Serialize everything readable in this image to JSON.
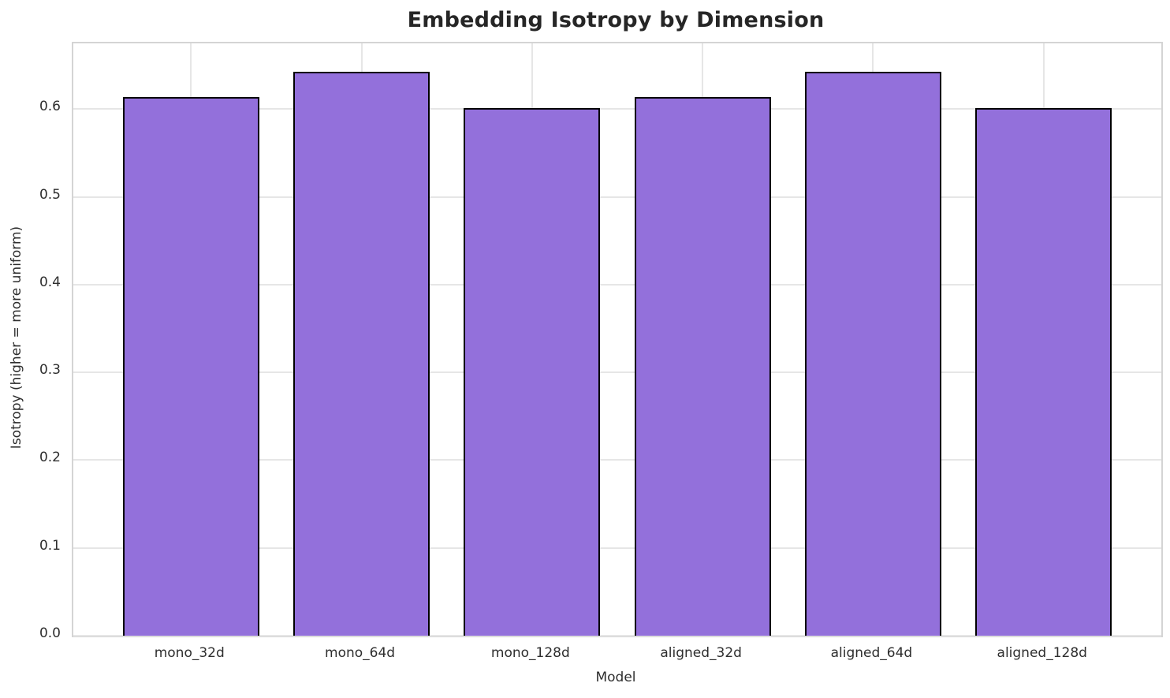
{
  "chart_data": {
    "type": "bar",
    "title": "Embedding Isotropy by Dimension",
    "xlabel": "Model",
    "ylabel": "Isotropy (higher = more uniform)",
    "categories": [
      "mono_32d",
      "mono_64d",
      "mono_128d",
      "aligned_32d",
      "aligned_64d",
      "aligned_128d"
    ],
    "values": [
      0.614,
      0.643,
      0.601,
      0.614,
      0.643,
      0.601
    ],
    "yticks": [
      0.0,
      0.1,
      0.2,
      0.3,
      0.4,
      0.5,
      0.6
    ],
    "ytick_labels": [
      "0.0",
      "0.1",
      "0.2",
      "0.3",
      "0.4",
      "0.5",
      "0.6"
    ],
    "ylim": [
      0,
      0.675
    ],
    "xlim": [
      -0.69,
      5.69
    ],
    "bar_rel_width": 0.8,
    "grid": true,
    "legend": false,
    "colors": {
      "bar_fill": "#9370DB",
      "bar_edge": "#000000",
      "grid": "#e6e6e6",
      "spine": "#d4d4d4",
      "text": "#2e2e2e",
      "title_text": "#262626",
      "background": "#ffffff"
    }
  }
}
